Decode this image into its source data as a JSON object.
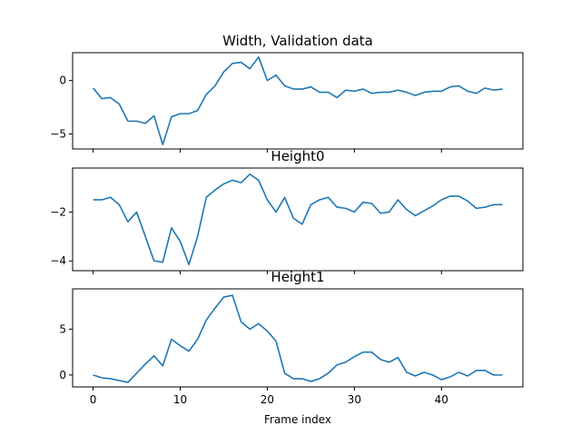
{
  "chart_data": [
    {
      "type": "line",
      "title": "Width, Validation data",
      "xlabel": "",
      "ylabel": "",
      "xlim": [
        -2.35,
        49.35
      ],
      "ylim": [
        -6.4,
        2.6
      ],
      "xticks": [
        0,
        10,
        20,
        30,
        40
      ],
      "yticks": [
        0,
        -5
      ],
      "show_xtick_labels": false,
      "grid": false,
      "series": [
        {
          "color": "#1f77b4",
          "x": [
            0,
            1,
            2,
            3,
            4,
            5,
            6,
            7,
            8,
            9,
            10,
            11,
            12,
            13,
            14,
            15,
            16,
            17,
            18,
            19,
            20,
            21,
            22,
            23,
            24,
            25,
            26,
            27,
            28,
            29,
            30,
            31,
            32,
            33,
            34,
            35,
            36,
            37,
            38,
            39,
            40,
            41,
            42,
            43,
            44,
            45,
            46,
            47
          ],
          "values": [
            -0.7,
            -1.7,
            -1.6,
            -2.2,
            -3.8,
            -3.8,
            -4.0,
            -3.3,
            -6.0,
            -3.4,
            -3.1,
            -3.1,
            -2.8,
            -1.3,
            -0.5,
            0.8,
            1.6,
            1.7,
            1.1,
            2.2,
            0.0,
            0.5,
            -0.5,
            -0.8,
            -0.8,
            -0.6,
            -1.1,
            -1.1,
            -1.6,
            -0.9,
            -1.0,
            -0.8,
            -1.2,
            -1.1,
            -1.1,
            -0.9,
            -1.1,
            -1.4,
            -1.1,
            -1.0,
            -1.0,
            -0.6,
            -0.5,
            -1.0,
            -1.2,
            -0.7,
            -0.9,
            -0.8
          ]
        }
      ]
    },
    {
      "type": "line",
      "title": "Height0",
      "xlabel": "",
      "ylabel": "",
      "xlim": [
        -2.35,
        49.35
      ],
      "ylim": [
        -4.4,
        -0.2
      ],
      "xticks": [
        0,
        10,
        20,
        30,
        40
      ],
      "yticks": [
        -2,
        -4
      ],
      "show_xtick_labels": false,
      "grid": false,
      "series": [
        {
          "color": "#1f77b4",
          "x": [
            0,
            1,
            2,
            3,
            4,
            5,
            6,
            7,
            8,
            9,
            10,
            11,
            12,
            13,
            14,
            15,
            16,
            17,
            18,
            19,
            20,
            21,
            22,
            23,
            24,
            25,
            26,
            27,
            28,
            29,
            30,
            31,
            32,
            33,
            34,
            35,
            36,
            37,
            38,
            39,
            40,
            41,
            42,
            43,
            44,
            45,
            46,
            47
          ],
          "values": [
            -1.5,
            -1.5,
            -1.4,
            -1.7,
            -2.4,
            -2.0,
            -3.0,
            -4.0,
            -4.05,
            -2.65,
            -3.2,
            -4.15,
            -3.0,
            -1.4,
            -1.1,
            -0.85,
            -0.7,
            -0.8,
            -0.45,
            -0.7,
            -1.5,
            -2.0,
            -1.4,
            -2.25,
            -2.5,
            -1.7,
            -1.5,
            -1.4,
            -1.8,
            -1.85,
            -2.0,
            -1.6,
            -1.65,
            -2.05,
            -2.0,
            -1.5,
            -1.9,
            -2.15,
            -1.95,
            -1.75,
            -1.5,
            -1.35,
            -1.35,
            -1.55,
            -1.85,
            -1.8,
            -1.7,
            -1.7
          ]
        }
      ]
    },
    {
      "type": "line",
      "title": "Height1",
      "xlabel": "Frame index",
      "ylabel": "",
      "xlim": [
        -2.35,
        49.35
      ],
      "ylim": [
        -1.3,
        9.4
      ],
      "xticks": [
        0,
        10,
        20,
        30,
        40
      ],
      "yticks": [
        0,
        5
      ],
      "show_xtick_labels": true,
      "grid": false,
      "series": [
        {
          "color": "#1f77b4",
          "x": [
            0,
            1,
            2,
            3,
            4,
            5,
            6,
            7,
            8,
            9,
            10,
            11,
            12,
            13,
            14,
            15,
            16,
            17,
            18,
            19,
            20,
            21,
            22,
            23,
            24,
            25,
            26,
            27,
            28,
            29,
            30,
            31,
            32,
            33,
            34,
            35,
            36,
            37,
            38,
            39,
            40,
            41,
            42,
            43,
            44,
            45,
            46,
            47
          ],
          "values": [
            0.0,
            -0.3,
            -0.4,
            -0.6,
            -0.8,
            0.2,
            1.2,
            2.1,
            1.0,
            3.9,
            3.2,
            2.6,
            3.9,
            6.0,
            7.3,
            8.5,
            8.7,
            5.8,
            5.0,
            5.6,
            4.8,
            3.7,
            0.2,
            -0.4,
            -0.4,
            -0.7,
            -0.4,
            0.2,
            1.1,
            1.4,
            2.0,
            2.5,
            2.5,
            1.7,
            1.4,
            1.9,
            0.3,
            -0.1,
            0.3,
            0.0,
            -0.5,
            -0.2,
            0.3,
            -0.1,
            0.5,
            0.5,
            0.0,
            0.0
          ]
        }
      ]
    }
  ]
}
